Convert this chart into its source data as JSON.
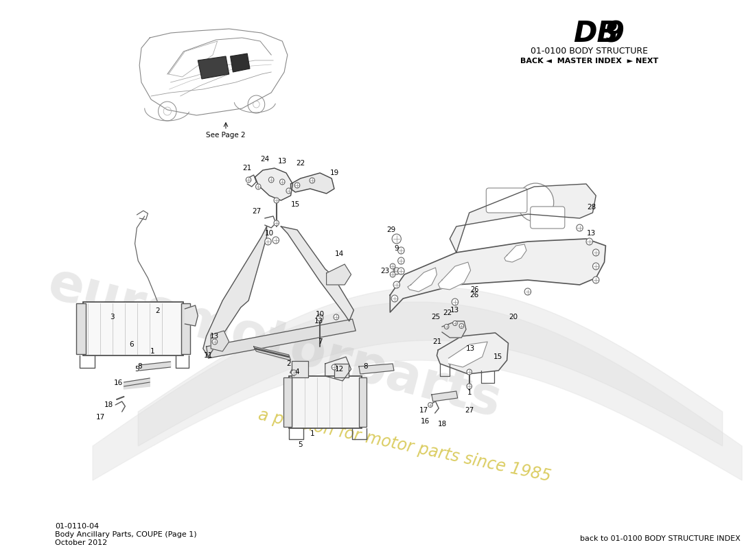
{
  "title_db": "DB",
  "title_9": "9",
  "subtitle": "01-0100 BODY STRUCTURE",
  "nav_text": "BACK ◄  MASTER INDEX  ► NEXT",
  "footer_left_line1": "01-0110-04",
  "footer_left_line2": "Body Ancillary Parts, COUPE (Page 1)",
  "footer_left_line3": "October 2012",
  "footer_right": "back to 01-0100 BODY STRUCTURE INDEX",
  "see_page2": "See Page 2",
  "bg_color": "#ffffff",
  "wm_color": "#c8c8c8",
  "wm_yellow": "#d4c030"
}
